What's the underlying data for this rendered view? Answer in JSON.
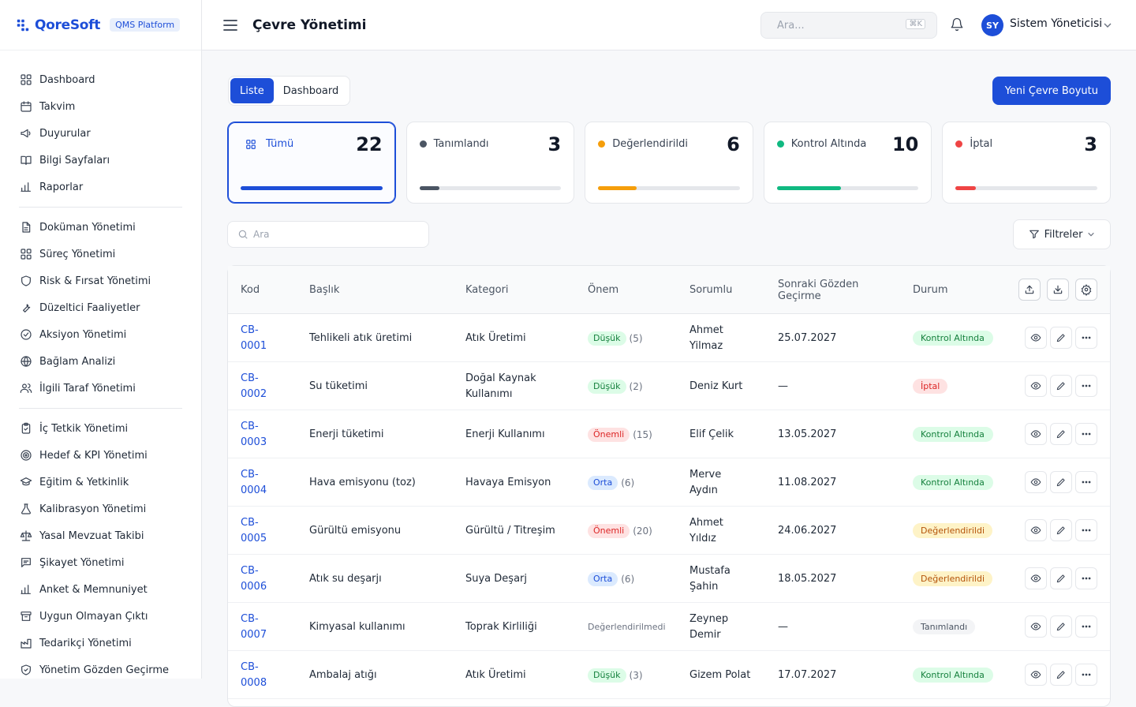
{
  "brand": {
    "logo_text": "QoreSoft",
    "platform_badge": "QMS Platform"
  },
  "sidebar": {
    "groups": [
      [
        {
          "label": "Dashboard",
          "icon": "grid-icon"
        },
        {
          "label": "Takvim",
          "icon": "calendar-icon"
        },
        {
          "label": "Duyurular",
          "icon": "megaphone-icon"
        },
        {
          "label": "Bilgi Sayfaları",
          "icon": "book-icon"
        },
        {
          "label": "Raporlar",
          "icon": "bar-chart-icon"
        }
      ],
      [
        {
          "label": "Doküman Yönetimi",
          "icon": "document-icon"
        },
        {
          "label": "Süreç Yönetimi",
          "icon": "grid-icon"
        },
        {
          "label": "Risk & Fırsat Yönetimi",
          "icon": "shield-icon"
        },
        {
          "label": "Düzeltici Faaliyetler",
          "icon": "wrench-icon"
        },
        {
          "label": "Aksiyon Yönetimi",
          "icon": "check-circle-icon"
        },
        {
          "label": "Bağlam Analizi",
          "icon": "globe-icon"
        },
        {
          "label": "İlgili Taraf Yönetimi",
          "icon": "users-icon"
        }
      ],
      [
        {
          "label": "İç Tetkik Yönetimi",
          "icon": "clipboard-icon"
        },
        {
          "label": "Hedef & KPI Yönetimi",
          "icon": "target-icon"
        },
        {
          "label": "Eğitim & Yetkinlik",
          "icon": "graduation-cap-icon"
        },
        {
          "label": "Kalibrasyon Yönetimi",
          "icon": "flask-icon"
        },
        {
          "label": "Yasal Mevzuat Takibi",
          "icon": "scale-icon"
        },
        {
          "label": "Şikayet Yönetimi",
          "icon": "message-icon"
        },
        {
          "label": "Anket & Memnuniyet",
          "icon": "bar-chart-icon"
        },
        {
          "label": "Uygun Olmayan Çıktı",
          "icon": "archive-icon"
        },
        {
          "label": "Tedarikçi Yönetimi",
          "icon": "factory-icon"
        },
        {
          "label": "Yönetim Gözden Geçirme",
          "icon": "shield-check-icon"
        }
      ]
    ]
  },
  "topbar": {
    "title": "Çevre Yönetimi",
    "search_placeholder": "Ara...",
    "shortcut": "⌘K",
    "user_initials": "SY",
    "user_name": "Sistem Yöneticisi"
  },
  "view_toggle": {
    "list_label": "Liste",
    "dashboard_label": "Dashboard",
    "active": "list"
  },
  "new_button": "Yeni Çevre Boyutu",
  "stats": [
    {
      "label": "Tümü",
      "count": "22",
      "fill": 1.0,
      "color": "#1d4ed8",
      "active": true
    },
    {
      "label": "Tanımlandı",
      "count": "3",
      "fill": 0.14,
      "color": "#4b5563",
      "active": false
    },
    {
      "label": "Değerlendirildi",
      "count": "6",
      "fill": 0.27,
      "color": "#f59e0b",
      "active": false
    },
    {
      "label": "Kontrol Altında",
      "count": "10",
      "fill": 0.45,
      "color": "#10b981",
      "active": false
    },
    {
      "label": "İptal",
      "count": "3",
      "fill": 0.14,
      "color": "#ef4444",
      "active": false
    }
  ],
  "list_search_placeholder": "Ara",
  "filter_label": "Filtreler",
  "table": {
    "columns": [
      "Kod",
      "Başlık",
      "Kategori",
      "Önem",
      "Sorumlu",
      "Sonraki Gözden Geçirme",
      "Durum"
    ],
    "rows": [
      {
        "code": "CB-0001",
        "title": "Tehlikeli atık üretimi",
        "category": "Atık Üretimi",
        "severity": "Düşük",
        "sev_class": "low",
        "score": "(5)",
        "owner": "Ahmet Yilmaz",
        "review": "25.07.2027",
        "status": "Kontrol Altında",
        "st_class": "st-kontrol"
      },
      {
        "code": "CB-0002",
        "title": "Su tüketimi",
        "category": "Doğal Kaynak Kullanımı",
        "severity": "Düşük",
        "sev_class": "low",
        "score": "(2)",
        "owner": "Deniz Kurt",
        "review": "—",
        "status": "İptal",
        "st_class": "st-iptal"
      },
      {
        "code": "CB-0003",
        "title": "Enerji tüketimi",
        "category": "Enerji Kullanımı",
        "severity": "Önemli",
        "sev_class": "high",
        "score": "(15)",
        "owner": "Elif Çelik",
        "review": "13.05.2027",
        "status": "Kontrol Altında",
        "st_class": "st-kontrol"
      },
      {
        "code": "CB-0004",
        "title": "Hava emisyonu (toz)",
        "category": "Havaya Emisyon",
        "severity": "Orta",
        "sev_class": "mid",
        "score": "(6)",
        "owner": "Merve Aydın",
        "review": "11.08.2027",
        "status": "Kontrol Altında",
        "st_class": "st-kontrol"
      },
      {
        "code": "CB-0005",
        "title": "Gürültü emisyonu",
        "category": "Gürültü / Titreşim",
        "severity": "Önemli",
        "sev_class": "high",
        "score": "(20)",
        "owner": "Ahmet Yıldız",
        "review": "24.06.2027",
        "status": "Değerlendirildi",
        "st_class": "st-deg"
      },
      {
        "code": "CB-0006",
        "title": "Atık su deşarjı",
        "category": "Suya Deşarj",
        "severity": "Orta",
        "sev_class": "mid",
        "score": "(6)",
        "owner": "Mustafa Şahin",
        "review": "18.05.2027",
        "status": "Değerlendirildi",
        "st_class": "st-deg"
      },
      {
        "code": "CB-0007",
        "title": "Kimyasal kullanımı",
        "category": "Toprak Kirliliği",
        "severity": "Değerlendirilmedi",
        "sev_class": "none",
        "score": "",
        "owner": "Zeynep Demir",
        "review": "—",
        "status": "Tanımlandı",
        "st_class": "st-tan"
      },
      {
        "code": "CB-0008",
        "title": "Ambalaj atığı",
        "category": "Atık Üretimi",
        "severity": "Düşük",
        "sev_class": "low",
        "score": "(3)",
        "owner": "Gizem Polat",
        "review": "17.07.2027",
        "status": "Kontrol Altında",
        "st_class": "st-kontrol"
      }
    ]
  }
}
